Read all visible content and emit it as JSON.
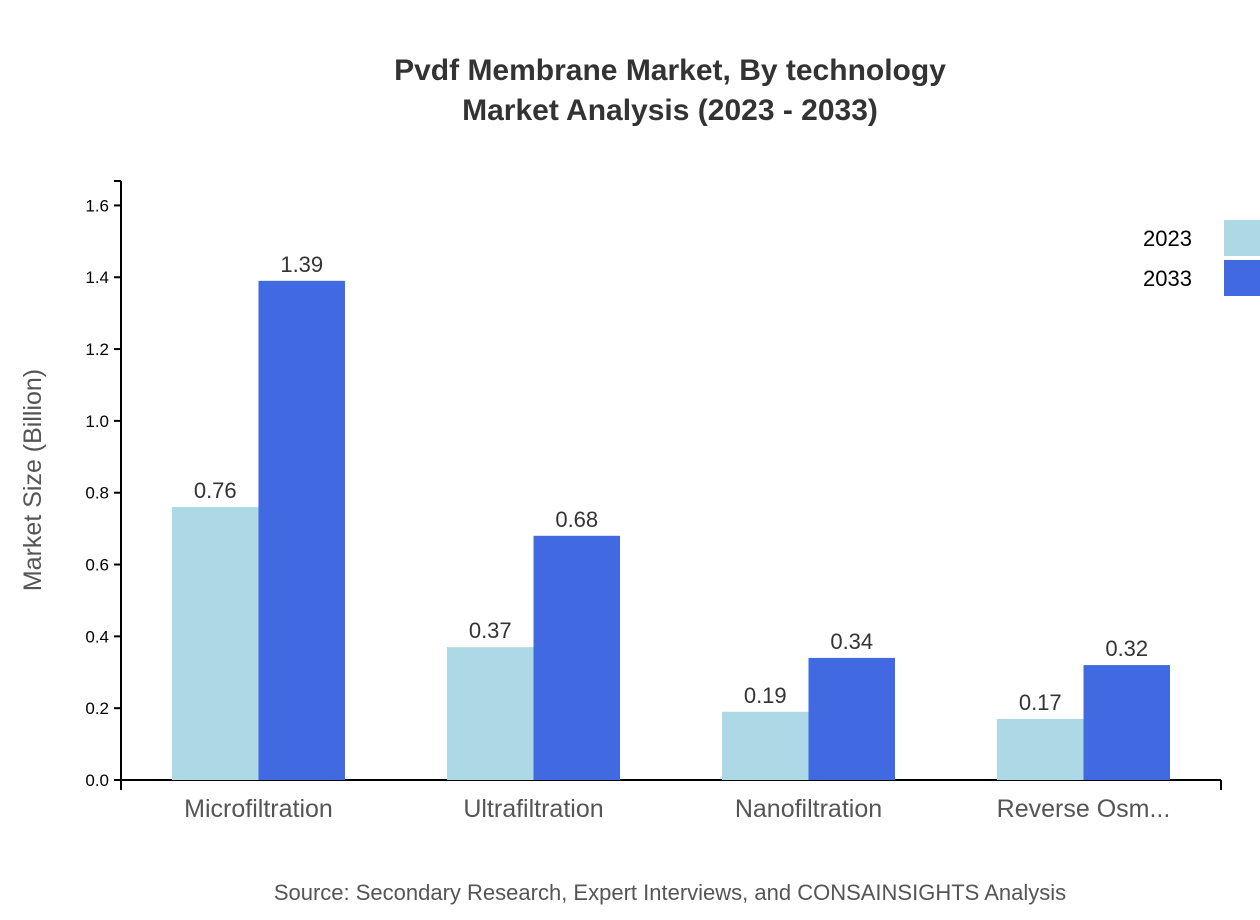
{
  "chart_data": {
    "type": "bar",
    "title": "Pvdf Membrane Market, By technology",
    "subtitle": "Market Analysis (2023 - 2033)",
    "xlabel": "",
    "ylabel": "Market Size (Billion)",
    "categories": [
      "Microfiltration",
      "Ultrafiltration",
      "Nanofiltration",
      "Reverse Osm..."
    ],
    "series": [
      {
        "name": "2023",
        "color": "#add8e6",
        "values": [
          0.76,
          0.37,
          0.19,
          0.17
        ]
      },
      {
        "name": "2033",
        "color": "#4169e1",
        "values": [
          1.39,
          0.68,
          0.34,
          0.32
        ]
      }
    ],
    "ylim": [
      0,
      1.668
    ],
    "yticks": [
      "0.0",
      "0.2",
      "0.4",
      "0.6",
      "0.8",
      "1.0",
      "1.2",
      "1.4",
      "1.6"
    ],
    "grid": false,
    "legend": "top-right",
    "source": "Source: Secondary Research, Expert Interviews, and CONSAINSIGHTS Analysis"
  }
}
